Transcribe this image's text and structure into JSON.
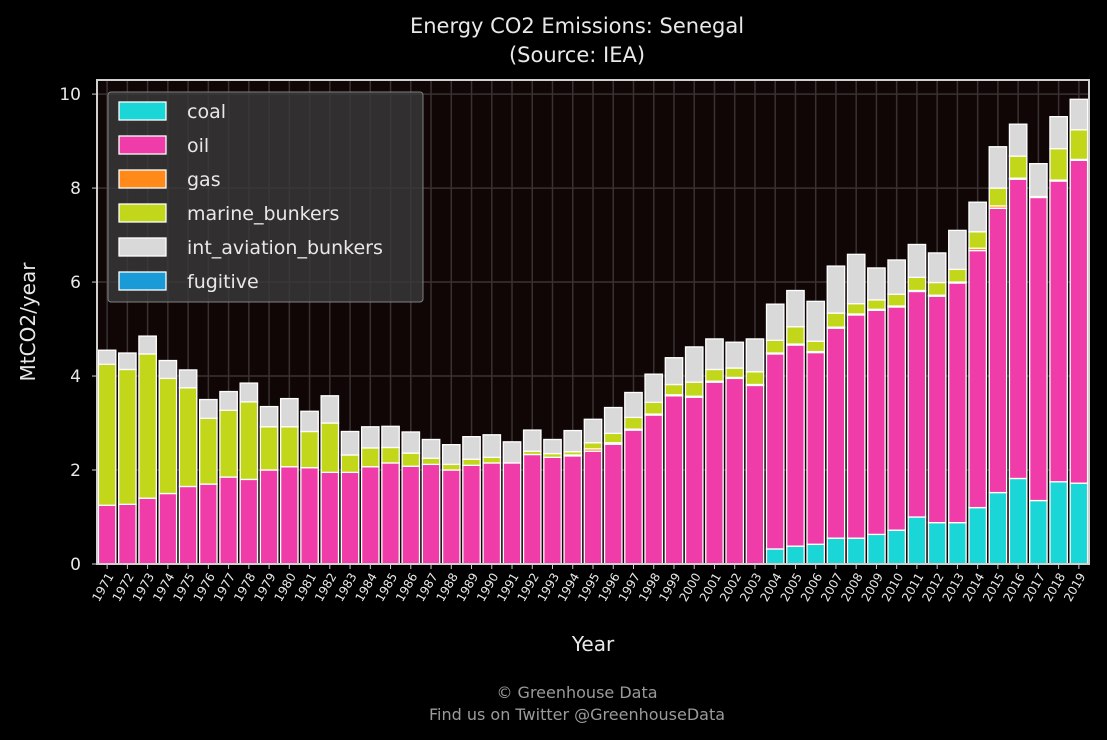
{
  "chart_data": {
    "type": "bar",
    "stacked": true,
    "title": "Energy CO2 Emissions: Senegal",
    "subtitle": "(Source: IEA)",
    "xlabel": "Year",
    "ylabel": "MtCO2/year",
    "ylim": [
      0,
      10.3
    ],
    "yticks": [
      0,
      2,
      4,
      6,
      8,
      10
    ],
    "grid": true,
    "legend_position": "top-left",
    "categories": [
      "1971",
      "1972",
      "1973",
      "1974",
      "1975",
      "1976",
      "1977",
      "1978",
      "1979",
      "1980",
      "1981",
      "1982",
      "1983",
      "1984",
      "1985",
      "1986",
      "1987",
      "1988",
      "1989",
      "1990",
      "1991",
      "1992",
      "1993",
      "1994",
      "1995",
      "1996",
      "1997",
      "1998",
      "1999",
      "2000",
      "2001",
      "2002",
      "2003",
      "2004",
      "2005",
      "2006",
      "2007",
      "2008",
      "2009",
      "2010",
      "2011",
      "2012",
      "2013",
      "2014",
      "2015",
      "2016",
      "2017",
      "2018",
      "2019"
    ],
    "series": [
      {
        "name": "coal",
        "color": "#1ad6d6",
        "values": [
          0,
          0,
          0,
          0,
          0,
          0,
          0,
          0,
          0,
          0,
          0,
          0,
          0,
          0,
          0,
          0,
          0,
          0,
          0,
          0,
          0,
          0,
          0,
          0,
          0,
          0,
          0,
          0,
          0,
          0,
          0,
          0,
          0,
          0.32,
          0.38,
          0.42,
          0.55,
          0.55,
          0.63,
          0.72,
          1.0,
          0.88,
          0.88,
          1.2,
          1.52,
          1.82,
          1.35,
          1.75,
          1.72
        ]
      },
      {
        "name": "oil",
        "color": "#f03ca8",
        "values": [
          1.25,
          1.27,
          1.4,
          1.5,
          1.65,
          1.7,
          1.85,
          1.8,
          2.0,
          2.07,
          2.05,
          1.95,
          1.95,
          2.07,
          2.15,
          2.08,
          2.12,
          2.0,
          2.1,
          2.15,
          2.15,
          2.33,
          2.27,
          2.3,
          2.4,
          2.55,
          2.85,
          3.17,
          3.58,
          3.55,
          3.87,
          3.95,
          3.8,
          4.15,
          4.28,
          4.08,
          4.47,
          4.75,
          4.77,
          4.75,
          4.8,
          4.82,
          5.1,
          5.47,
          6.05,
          6.37,
          6.45,
          6.4,
          6.87
        ]
      },
      {
        "name": "gas",
        "color": "#ff8a1a",
        "values": [
          0,
          0,
          0,
          0,
          0,
          0,
          0,
          0,
          0,
          0,
          0,
          0,
          0,
          0,
          0,
          0,
          0,
          0,
          0,
          0,
          0,
          0,
          0,
          0.02,
          0.05,
          0.03,
          0.02,
          0.02,
          0.02,
          0.02,
          0.02,
          0.02,
          0.02,
          0.02,
          0.02,
          0.02,
          0.02,
          0.02,
          0.02,
          0.02,
          0.02,
          0.02,
          0.02,
          0.05,
          0.05,
          0.02,
          0.02,
          0.02,
          0.02
        ]
      },
      {
        "name": "marine_bunkers",
        "color": "#c2d71a",
        "values": [
          3.0,
          2.87,
          3.07,
          2.45,
          2.1,
          1.4,
          1.42,
          1.65,
          0.92,
          0.85,
          0.77,
          1.05,
          0.37,
          0.4,
          0.33,
          0.28,
          0.13,
          0.12,
          0.13,
          0.12,
          0.0,
          0.07,
          0.08,
          0.07,
          0.13,
          0.2,
          0.25,
          0.25,
          0.22,
          0.3,
          0.25,
          0.2,
          0.27,
          0.27,
          0.37,
          0.22,
          0.3,
          0.22,
          0.2,
          0.25,
          0.28,
          0.27,
          0.27,
          0.35,
          0.38,
          0.47,
          0.0,
          0.67,
          0.63
        ]
      },
      {
        "name": "int_aviation_bunkers",
        "color": "#d9d9d9",
        "values": [
          0.3,
          0.35,
          0.38,
          0.38,
          0.38,
          0.4,
          0.4,
          0.4,
          0.43,
          0.6,
          0.43,
          0.58,
          0.5,
          0.45,
          0.45,
          0.45,
          0.4,
          0.42,
          0.48,
          0.48,
          0.45,
          0.45,
          0.3,
          0.45,
          0.5,
          0.55,
          0.53,
          0.6,
          0.57,
          0.75,
          0.65,
          0.55,
          0.7,
          0.77,
          0.77,
          0.85,
          1.0,
          1.05,
          0.68,
          0.73,
          0.7,
          0.63,
          0.83,
          0.63,
          0.88,
          0.68,
          0.7,
          0.68,
          0.65
        ]
      },
      {
        "name": "fugitive",
        "color": "#1a9ad6",
        "values": [
          0,
          0,
          0,
          0,
          0,
          0,
          0,
          0,
          0,
          0,
          0,
          0,
          0,
          0,
          0,
          0,
          0,
          0,
          0,
          0,
          0,
          0,
          0,
          0,
          0,
          0,
          0,
          0,
          0,
          0,
          0,
          0,
          0,
          0,
          0,
          0,
          0,
          0,
          0,
          0,
          0,
          0,
          0,
          0,
          0,
          0,
          0,
          0,
          0
        ]
      }
    ]
  },
  "footer": {
    "line1": "© Greenhouse Data",
    "line2": "Find us on Twitter @GreenhouseData"
  },
  "colors": {
    "background": "#000000",
    "plot_background": "#100606",
    "grid": "#3a3232",
    "bar_edge": "#ffffff"
  }
}
